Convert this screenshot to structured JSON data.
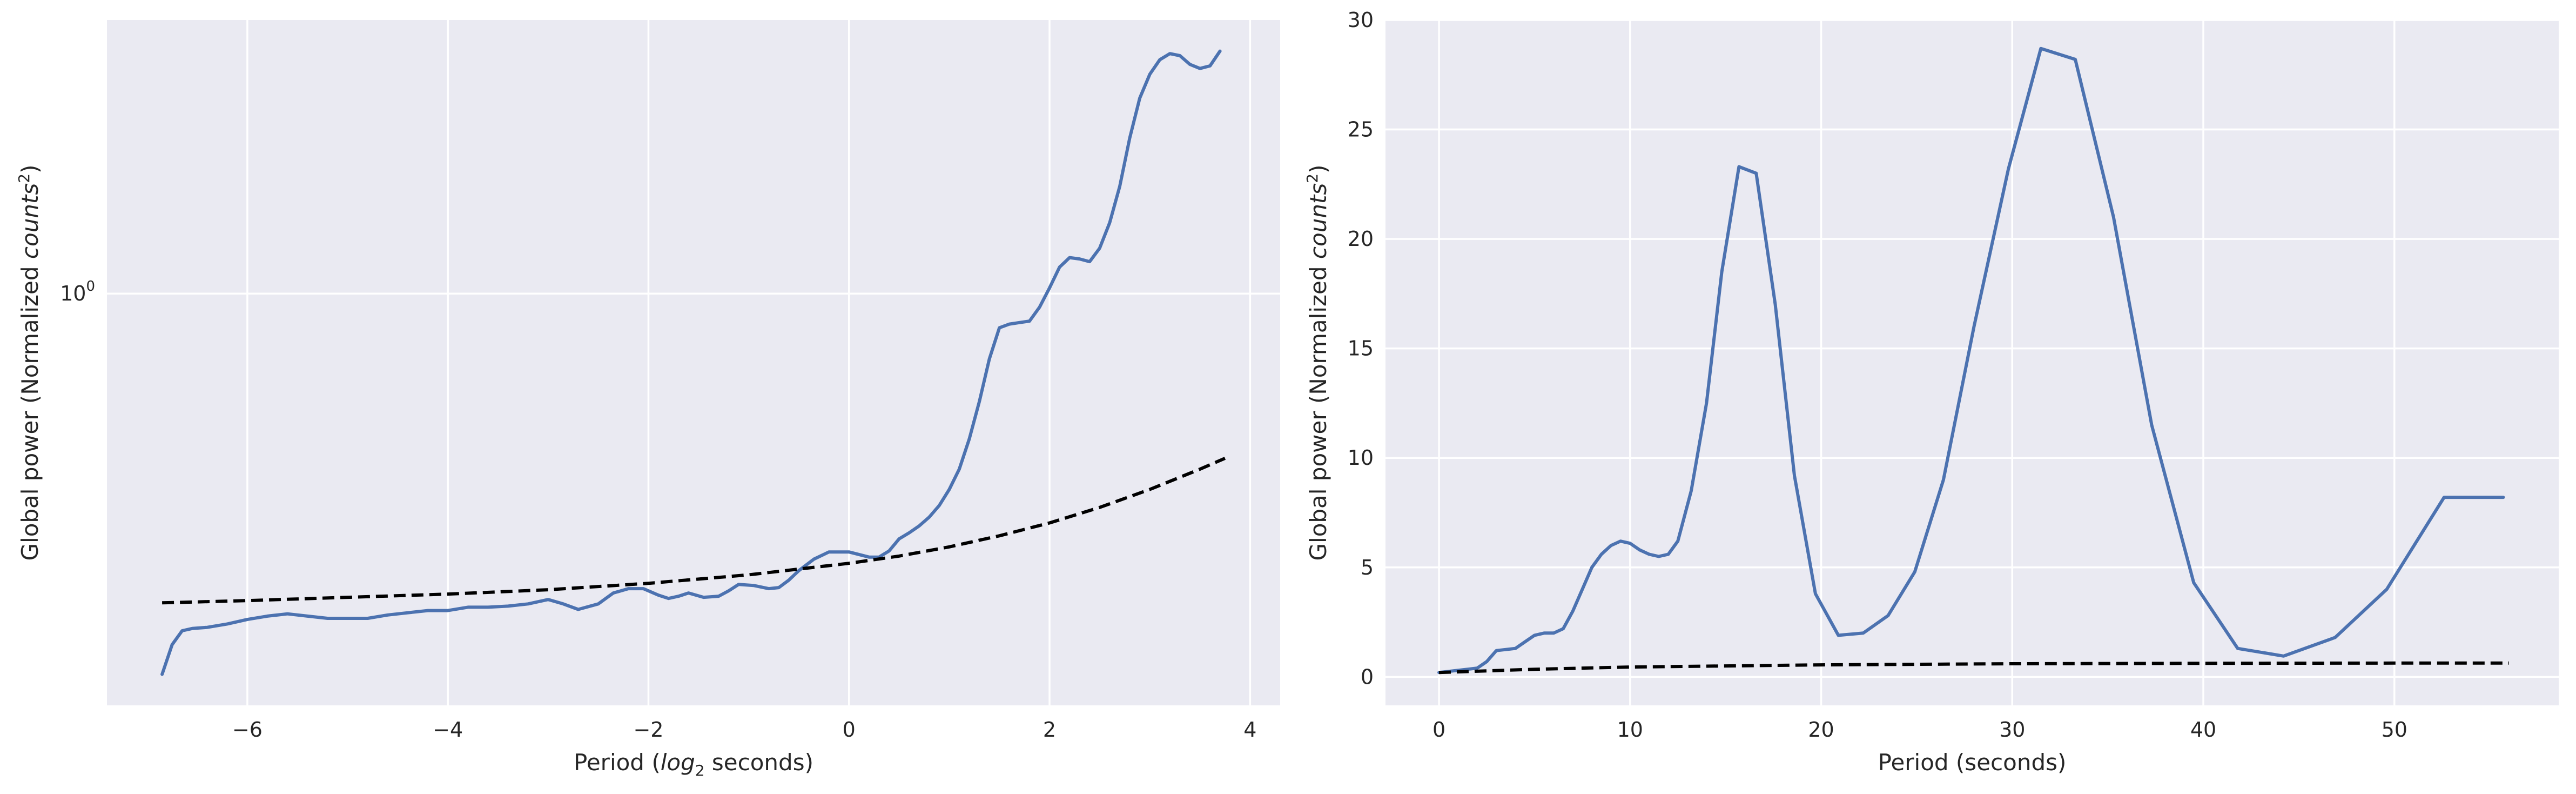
{
  "chart_data": [
    {
      "type": "line",
      "xlabel_pre": "Period (",
      "xlabel_italic": "log",
      "xlabel_sub": "2",
      "xlabel_post": " seconds)",
      "ylabel_pre": "Global power (Normalized ",
      "ylabel_italic": "counts",
      "ylabel_sup": "2",
      "ylabel_post": ")",
      "yscale": "log",
      "xlim": [
        -7.4,
        4.3
      ],
      "ylim": [
        0.56,
        1.47
      ],
      "xticks": [
        -6,
        -4,
        -2,
        0,
        2,
        4
      ],
      "xtick_labels": [
        "−6",
        "−4",
        "−2",
        "0",
        "2",
        "4"
      ],
      "yticks": [
        1.0
      ],
      "ytick_labels": [
        {
          "base": "10",
          "exp": "0"
        }
      ],
      "grid": true,
      "series": [
        {
          "color": "#4C72B0",
          "style": "solid",
          "x": [
            -6.85,
            -6.75,
            -6.65,
            -6.55,
            -6.4,
            -6.2,
            -6.0,
            -5.8,
            -5.6,
            -5.4,
            -5.2,
            -5.0,
            -4.8,
            -4.6,
            -4.4,
            -4.2,
            -4.0,
            -3.8,
            -3.6,
            -3.4,
            -3.2,
            -3.0,
            -2.85,
            -2.7,
            -2.5,
            -2.35,
            -2.2,
            -2.05,
            -1.9,
            -1.8,
            -1.7,
            -1.6,
            -1.45,
            -1.3,
            -1.2,
            -1.1,
            -0.95,
            -0.8,
            -0.7,
            -0.6,
            -0.5,
            -0.35,
            -0.2,
            0.0,
            0.2,
            0.3,
            0.4,
            0.5,
            0.6,
            0.7,
            0.8,
            0.9,
            1.0,
            1.1,
            1.2,
            1.3,
            1.4,
            1.5,
            1.6,
            1.7,
            1.8,
            1.9,
            2.0,
            2.1,
            2.2,
            2.3,
            2.4,
            2.5,
            2.6,
            2.7,
            2.8,
            2.9,
            3.0,
            3.1,
            3.2,
            3.3,
            3.4,
            3.5,
            3.6,
            3.7
          ],
          "y": [
            0.585,
            0.61,
            0.622,
            0.624,
            0.625,
            0.628,
            0.632,
            0.635,
            0.637,
            0.635,
            0.633,
            0.633,
            0.633,
            0.636,
            0.638,
            0.64,
            0.64,
            0.643,
            0.643,
            0.644,
            0.646,
            0.65,
            0.646,
            0.641,
            0.646,
            0.656,
            0.66,
            0.66,
            0.654,
            0.651,
            0.653,
            0.656,
            0.652,
            0.653,
            0.658,
            0.664,
            0.663,
            0.66,
            0.661,
            0.668,
            0.677,
            0.688,
            0.695,
            0.695,
            0.69,
            0.69,
            0.696,
            0.708,
            0.714,
            0.721,
            0.73,
            0.742,
            0.759,
            0.781,
            0.815,
            0.859,
            0.912,
            0.953,
            0.958,
            0.96,
            0.962,
            0.981,
            1.008,
            1.038,
            1.052,
            1.05,
            1.046,
            1.066,
            1.105,
            1.163,
            1.245,
            1.317,
            1.362,
            1.39,
            1.402,
            1.398,
            1.381,
            1.373,
            1.378,
            1.407
          ]
        },
        {
          "color": "#000000",
          "style": "dashed",
          "x": [
            -6.85,
            -6.0,
            -5.0,
            -4.0,
            -3.0,
            -2.0,
            -1.0,
            0.0,
            0.5,
            1.0,
            1.5,
            2.0,
            2.5,
            3.0,
            3.5,
            3.75
          ],
          "y": [
            0.647,
            0.649,
            0.652,
            0.655,
            0.659,
            0.665,
            0.673,
            0.684,
            0.691,
            0.7,
            0.711,
            0.724,
            0.74,
            0.759,
            0.781,
            0.793
          ]
        }
      ]
    },
    {
      "type": "line",
      "xlabel": "Period (seconds)",
      "ylabel_pre": "Global power (Normalized ",
      "ylabel_italic": "counts",
      "ylabel_sup": "2",
      "ylabel_post": ")",
      "yscale": "linear",
      "xlim": [
        -2.8,
        58.6
      ],
      "ylim": [
        -1.3,
        30.0
      ],
      "xticks": [
        0,
        10,
        20,
        30,
        40,
        50
      ],
      "xtick_labels": [
        "0",
        "10",
        "20",
        "30",
        "40",
        "50"
      ],
      "yticks": [
        0,
        5,
        10,
        15,
        20,
        25,
        30
      ],
      "ytick_labels": [
        "0",
        "5",
        "10",
        "15",
        "20",
        "25",
        "30"
      ],
      "grid": true,
      "series": [
        {
          "color": "#4C72B0",
          "style": "solid",
          "x": [
            0.0,
            0.5,
            1.0,
            1.5,
            2.0,
            2.5,
            3.0,
            3.5,
            4.0,
            4.5,
            5.0,
            5.5,
            6.0,
            6.5,
            7.0,
            7.5,
            8.0,
            8.5,
            9.0,
            9.5,
            10.0,
            10.5,
            11.0,
            11.5,
            12.0,
            12.5,
            13.2,
            14.0,
            14.8,
            15.7,
            16.6,
            17.6,
            18.6,
            19.7,
            20.9,
            22.2,
            23.5,
            24.9,
            26.4,
            28.0,
            29.8,
            31.5,
            33.3,
            35.3,
            37.3,
            39.5,
            41.8,
            44.2,
            46.9,
            49.6,
            52.6,
            55.7
          ],
          "y": [
            0.2,
            0.25,
            0.3,
            0.35,
            0.4,
            0.7,
            1.2,
            1.25,
            1.3,
            1.6,
            1.9,
            2.0,
            2.0,
            2.2,
            3.0,
            4.0,
            5.0,
            5.6,
            6.0,
            6.2,
            6.1,
            5.8,
            5.6,
            5.5,
            5.6,
            6.2,
            8.5,
            12.5,
            18.5,
            23.3,
            23.0,
            17.0,
            9.2,
            3.8,
            1.9,
            2.0,
            2.8,
            4.8,
            9.0,
            16.0,
            23.2,
            28.7,
            28.2,
            21.0,
            11.5,
            4.3,
            1.3,
            0.95,
            1.8,
            4.0,
            8.2,
            8.2
          ]
        },
        {
          "color": "#000000",
          "style": "dashed",
          "x": [
            0.0,
            5.0,
            10.0,
            20.0,
            30.0,
            40.0,
            50.0,
            56.0
          ],
          "y": [
            0.2,
            0.35,
            0.45,
            0.55,
            0.6,
            0.62,
            0.63,
            0.63
          ]
        }
      ]
    }
  ]
}
